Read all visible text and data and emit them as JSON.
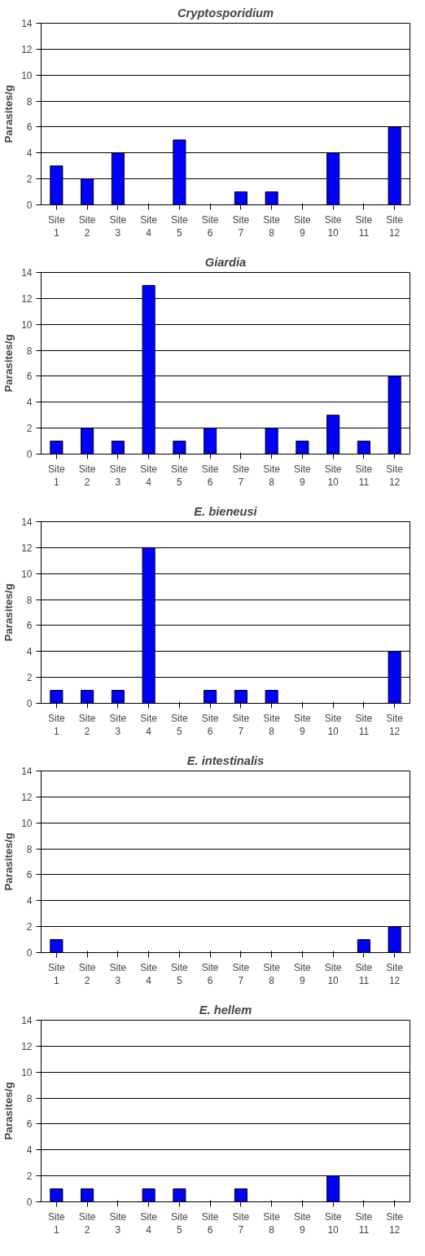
{
  "chart_data": [
    {
      "type": "bar",
      "title": "Cryptosporidium",
      "ylabel": "Parasites/g",
      "categories": [
        "Site 1",
        "Site 2",
        "Site 3",
        "Site 4",
        "Site 5",
        "Site 6",
        "Site 7",
        "Site 8",
        "Site 9",
        "Site 10",
        "Site 11",
        "Site 12"
      ],
      "values": [
        3,
        2,
        4,
        0,
        5,
        0,
        1,
        1,
        0,
        4,
        0,
        6
      ],
      "color": "#0000ff",
      "ylim": [
        0,
        14
      ],
      "yticks": [
        0,
        2,
        4,
        6,
        8,
        10,
        12,
        14
      ],
      "grid": "y"
    },
    {
      "type": "bar",
      "title": "Giardia",
      "ylabel": "Parasites/g",
      "categories": [
        "Site 1",
        "Site 2",
        "Site 3",
        "Site 4",
        "Site 5",
        "Site 6",
        "Site 7",
        "Site 8",
        "Site 9",
        "Site 10",
        "Site 11",
        "Site 12"
      ],
      "values": [
        1,
        2,
        1,
        13,
        1,
        2,
        0,
        2,
        1,
        3,
        1,
        6
      ],
      "color": "#0000ff",
      "ylim": [
        0,
        14
      ],
      "yticks": [
        0,
        2,
        4,
        6,
        8,
        10,
        12,
        14
      ],
      "grid": "y"
    },
    {
      "type": "bar",
      "title": "E. bieneusi",
      "ylabel": "Parasites/g",
      "categories": [
        "Site 1",
        "Site 2",
        "Site 3",
        "Site 4",
        "Site 5",
        "Site 6",
        "Site 7",
        "Site 8",
        "Site 9",
        "Site 10",
        "Site 11",
        "Site 12"
      ],
      "values": [
        1,
        1,
        1,
        12,
        0,
        1,
        1,
        1,
        0,
        0,
        0,
        4
      ],
      "color": "#0000ff",
      "ylim": [
        0,
        14
      ],
      "yticks": [
        0,
        2,
        4,
        6,
        8,
        10,
        12,
        14
      ],
      "grid": "y"
    },
    {
      "type": "bar",
      "title": "E. intestinalis",
      "ylabel": "Parasites/g",
      "categories": [
        "Site 1",
        "Site 2",
        "Site 3",
        "Site 4",
        "Site 5",
        "Site 6",
        "Site 7",
        "Site 8",
        "Site 9",
        "Site 10",
        "Site 11",
        "Site 12"
      ],
      "values": [
        1,
        0,
        0,
        0,
        0,
        0,
        0,
        0,
        0,
        0,
        1,
        2
      ],
      "color": "#0000ff",
      "ylim": [
        0,
        14
      ],
      "yticks": [
        0,
        2,
        4,
        6,
        8,
        10,
        12,
        14
      ],
      "grid": "y"
    },
    {
      "type": "bar",
      "title": "E. hellem",
      "ylabel": "Parasites/g",
      "categories": [
        "Site 1",
        "Site 2",
        "Site 3",
        "Site 4",
        "Site 5",
        "Site 6",
        "Site 7",
        "Site 8",
        "Site 9",
        "Site 10",
        "Site 11",
        "Site 12"
      ],
      "values": [
        1,
        1,
        0,
        1,
        1,
        0,
        1,
        0,
        0,
        2,
        0,
        0
      ],
      "color": "#0000ff",
      "ylim": [
        0,
        14
      ],
      "yticks": [
        0,
        2,
        4,
        6,
        8,
        10,
        12,
        14
      ],
      "grid": "y"
    }
  ]
}
